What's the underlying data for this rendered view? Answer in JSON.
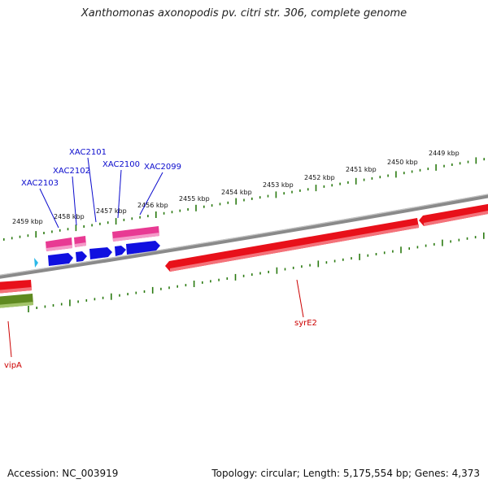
{
  "title": "Xanthomonas axonopodis pv. citri str. 306, complete genome",
  "footer": {
    "accession": "Accession: NC_003919",
    "summary": "Topology: circular; Length: 5,175,554 bp; Genes: 4,373"
  },
  "scale": {
    "unit": "kbp",
    "labels": [
      "2459 kbp",
      "2458 kbp",
      "2457 kbp",
      "2456 kbp",
      "2455 kbp",
      "2454 kbp",
      "2453 kbp",
      "2452 kbp",
      "2451 kbp",
      "2450 kbp",
      "2449 kbp"
    ]
  },
  "colors": {
    "backbone": "#8a8a8a",
    "tick": "#2a7a10",
    "gene_red": "#e8101a",
    "gene_pink": "#e83a93",
    "gene_blue": "#1010e0",
    "gene_green": "#5f8a20",
    "gene_cyan": "#2ab8e8",
    "label_blue": "#0a0acd",
    "label_red": "#cc0000"
  },
  "gene_labels": {
    "top": [
      "XAC2103",
      "XAC2102",
      "XAC2101",
      "XAC2100",
      "XAC2099"
    ],
    "bottom": [
      "syrE2",
      "vipA"
    ]
  }
}
